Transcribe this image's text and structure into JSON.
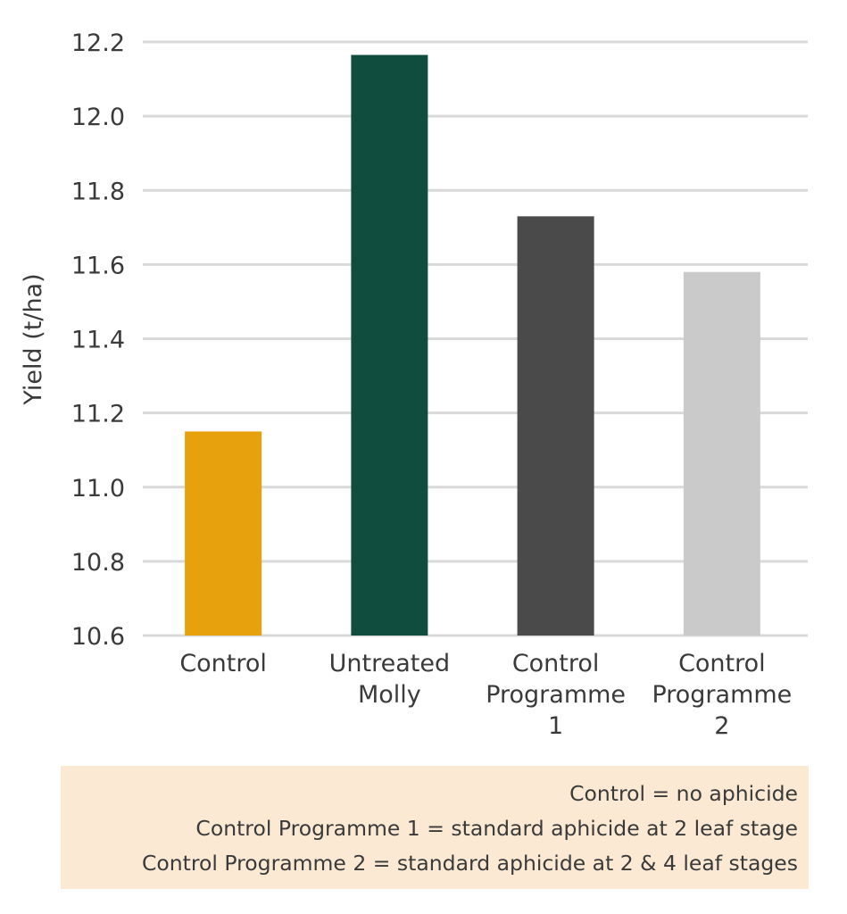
{
  "chart_data": {
    "type": "bar",
    "categories": [
      [
        "Control"
      ],
      [
        "Untreated",
        "Molly"
      ],
      [
        "Control",
        "Programme",
        "1"
      ],
      [
        "Control",
        "Programme",
        "2"
      ]
    ],
    "values": [
      11.15,
      12.165,
      11.73,
      11.58
    ],
    "colors": [
      "#e6a10c",
      "#114d3f",
      "#4a4a4a",
      "#cacaca"
    ],
    "ylabel": "Yield (t/ha)",
    "ylim": [
      10.6,
      12.2
    ],
    "yticks": [
      "12.2",
      "12.0",
      "11.8",
      "11.6",
      "11.4",
      "11.2",
      "11.0",
      "10.8",
      "10.6"
    ],
    "grid": true,
    "gridColor": "#d9d9d9"
  },
  "notes": [
    "Control = no aphicide",
    "Control Programme 1 = standard aphicide at 2 leaf stage",
    "Control Programme 2 = standard aphicide at 2 & 4 leaf stages"
  ]
}
